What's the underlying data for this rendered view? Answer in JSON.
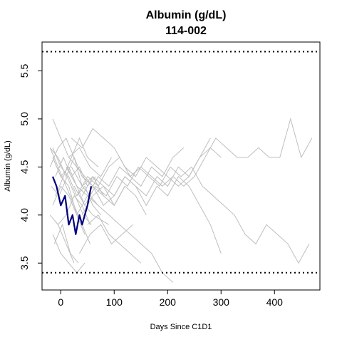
{
  "chart_data": {
    "type": "line",
    "title": "Albumin (g/dL)",
    "subtitle": "114-002",
    "xlabel": "Days Since C1D1",
    "ylabel": "Albumin (g/dL)",
    "xlim": [
      -35,
      485
    ],
    "ylim": [
      3.22,
      5.8
    ],
    "x_ticks": [
      0,
      100,
      200,
      300,
      400
    ],
    "y_ticks": [
      3.5,
      4.0,
      4.5,
      5.0,
      5.5
    ],
    "reference_lines": [
      {
        "value": 5.7,
        "style": "dotted"
      },
      {
        "value": 3.4,
        "style": "dotted"
      }
    ],
    "highlight": {
      "name": "114-002",
      "color": "#000080",
      "x": [
        -15,
        -8,
        0,
        8,
        15,
        22,
        28,
        35,
        40,
        45,
        50,
        57
      ],
      "y": [
        4.4,
        4.3,
        4.1,
        4.2,
        3.9,
        4.0,
        3.8,
        4.0,
        3.9,
        4.0,
        4.1,
        4.3
      ]
    },
    "background_color": "#bebebe",
    "background_series": [
      {
        "x": [
          -15,
          0,
          15,
          30,
          45,
          60
        ],
        "y": [
          5.0,
          4.8,
          4.6,
          4.5,
          4.4,
          4.3
        ]
      },
      {
        "x": [
          -20,
          -5,
          10,
          25,
          40,
          55
        ],
        "y": [
          4.7,
          4.5,
          4.3,
          4.1,
          3.9,
          3.7
        ]
      },
      {
        "x": [
          -15,
          0,
          15,
          30,
          45
        ],
        "y": [
          4.6,
          4.4,
          4.3,
          4.0,
          3.8
        ]
      },
      {
        "x": [
          -18,
          -3,
          12,
          27,
          42,
          57
        ],
        "y": [
          4.3,
          4.2,
          4.4,
          4.2,
          4.0,
          3.9
        ]
      },
      {
        "x": [
          -20,
          -5,
          10,
          25
        ],
        "y": [
          4.0,
          3.9,
          3.7,
          3.5
        ]
      },
      {
        "x": [
          -15,
          0,
          15,
          30,
          45
        ],
        "y": [
          3.8,
          3.6,
          3.5,
          3.4,
          3.5
        ]
      },
      {
        "x": [
          -12,
          3,
          18,
          33
        ],
        "y": [
          3.7,
          3.9,
          3.6,
          3.5
        ]
      },
      {
        "x": [
          -20,
          -5,
          10,
          25,
          40,
          60,
          80
        ],
        "y": [
          4.5,
          4.7,
          4.8,
          4.6,
          4.4,
          4.3,
          4.2
        ]
      },
      {
        "x": [
          -10,
          5,
          20,
          35,
          50,
          70
        ],
        "y": [
          4.2,
          4.4,
          4.6,
          4.8,
          4.6,
          4.5
        ]
      },
      {
        "x": [
          -15,
          0,
          15,
          30,
          45,
          60,
          75
        ],
        "y": [
          4.7,
          4.5,
          4.4,
          4.2,
          4.3,
          4.1,
          4.0
        ]
      },
      {
        "x": [
          -15,
          0,
          15,
          30,
          45
        ],
        "y": [
          4.1,
          4.3,
          4.2,
          4.0,
          3.8
        ]
      },
      {
        "x": [
          -10,
          5,
          20,
          35,
          50,
          65
        ],
        "y": [
          4.4,
          4.6,
          4.4,
          4.5,
          4.3,
          4.4
        ]
      },
      {
        "x": [
          -5,
          10,
          25,
          40,
          55
        ],
        "y": [
          3.9,
          4.0,
          4.2,
          4.1,
          3.9
        ]
      },
      {
        "x": [
          -15,
          0,
          15,
          30,
          45,
          60,
          90
        ],
        "y": [
          4.6,
          4.4,
          4.5,
          4.3,
          4.1,
          4.0,
          3.9
        ]
      },
      {
        "x": [
          -20,
          -5,
          10,
          25,
          40,
          55,
          70
        ],
        "y": [
          4.7,
          4.6,
          4.4,
          4.6,
          4.3,
          4.2,
          4.1
        ]
      },
      {
        "x": [
          20,
          40,
          60,
          80,
          100,
          120,
          140,
          160,
          180,
          200,
          220,
          240,
          260,
          280,
          300
        ],
        "y": [
          4.8,
          4.7,
          4.9,
          4.8,
          4.7,
          4.5,
          4.4,
          4.6,
          4.5,
          4.4,
          4.3,
          4.4,
          4.6,
          4.7,
          4.6
        ]
      },
      {
        "x": [
          30,
          50,
          70,
          90,
          110,
          130,
          150,
          170,
          190,
          210,
          230,
          250,
          270,
          290,
          310,
          330,
          350,
          370,
          390,
          410,
          430,
          450,
          470
        ],
        "y": [
          4.2,
          4.4,
          4.3,
          4.5,
          4.6,
          4.4,
          4.5,
          4.4,
          4.3,
          4.4,
          4.3,
          4.4,
          4.6,
          4.8,
          4.7,
          4.6,
          4.6,
          4.7,
          4.6,
          4.6,
          5.0,
          4.6,
          4.8
        ]
      },
      {
        "x": [
          25,
          45,
          65,
          85,
          105,
          125,
          145,
          165,
          185,
          205,
          225,
          245,
          265,
          285,
          305,
          325,
          345,
          365,
          385,
          405,
          425,
          445,
          465
        ],
        "y": [
          4.3,
          4.1,
          4.3,
          4.2,
          4.4,
          4.3,
          4.5,
          4.4,
          4.3,
          4.5,
          4.4,
          4.5,
          4.3,
          4.2,
          4.1,
          4.0,
          3.8,
          3.7,
          3.9,
          3.8,
          3.7,
          3.5,
          3.7
        ]
      },
      {
        "x": [
          40,
          60,
          80,
          100,
          120,
          140,
          160,
          180,
          200,
          220,
          240,
          260,
          280,
          300
        ],
        "y": [
          4.0,
          4.2,
          4.3,
          4.2,
          4.4,
          4.3,
          4.1,
          4.3,
          4.2,
          4.4,
          4.3,
          4.1,
          3.9,
          3.6
        ]
      },
      {
        "x": [
          10,
          30,
          50,
          70,
          90,
          110,
          130,
          150,
          170,
          190,
          210,
          230
        ],
        "y": [
          4.5,
          4.3,
          4.2,
          4.4,
          4.3,
          4.5,
          4.4,
          4.3,
          4.5,
          4.4,
          4.6,
          4.7
        ]
      },
      {
        "x": [
          30,
          50,
          70,
          90,
          110,
          130,
          150,
          170,
          190,
          210
        ],
        "y": [
          4.0,
          4.2,
          4.1,
          4.0,
          3.9,
          3.8,
          3.7,
          3.6,
          3.4,
          3.3
        ]
      },
      {
        "x": [
          50,
          70,
          90,
          110,
          130,
          150
        ],
        "y": [
          3.9,
          4.0,
          3.8,
          3.7,
          3.6,
          3.5
        ]
      },
      {
        "x": [
          40,
          60,
          80,
          100,
          120,
          140,
          160
        ],
        "y": [
          4.2,
          4.4,
          4.3,
          4.1,
          4.3,
          4.2,
          4.0
        ]
      },
      {
        "x": [
          60,
          80,
          100,
          120,
          140,
          160,
          180,
          200,
          220,
          240,
          260,
          280
        ],
        "y": [
          4.3,
          4.1,
          4.2,
          4.4,
          4.3,
          4.2,
          4.4,
          4.3,
          4.5,
          4.4,
          4.6,
          4.8
        ]
      },
      {
        "x": [
          20,
          40,
          60,
          80,
          100,
          120
        ],
        "y": [
          4.5,
          4.3,
          4.4,
          4.2,
          4.1,
          4.3
        ]
      },
      {
        "x": [
          15,
          35,
          55,
          75,
          95
        ],
        "y": [
          4.6,
          4.7,
          4.5,
          4.4,
          4.6
        ]
      },
      {
        "x": [
          35,
          55,
          75,
          95,
          115,
          135
        ],
        "y": [
          3.6,
          3.8,
          3.9,
          3.7,
          3.8,
          3.9
        ]
      }
    ]
  }
}
